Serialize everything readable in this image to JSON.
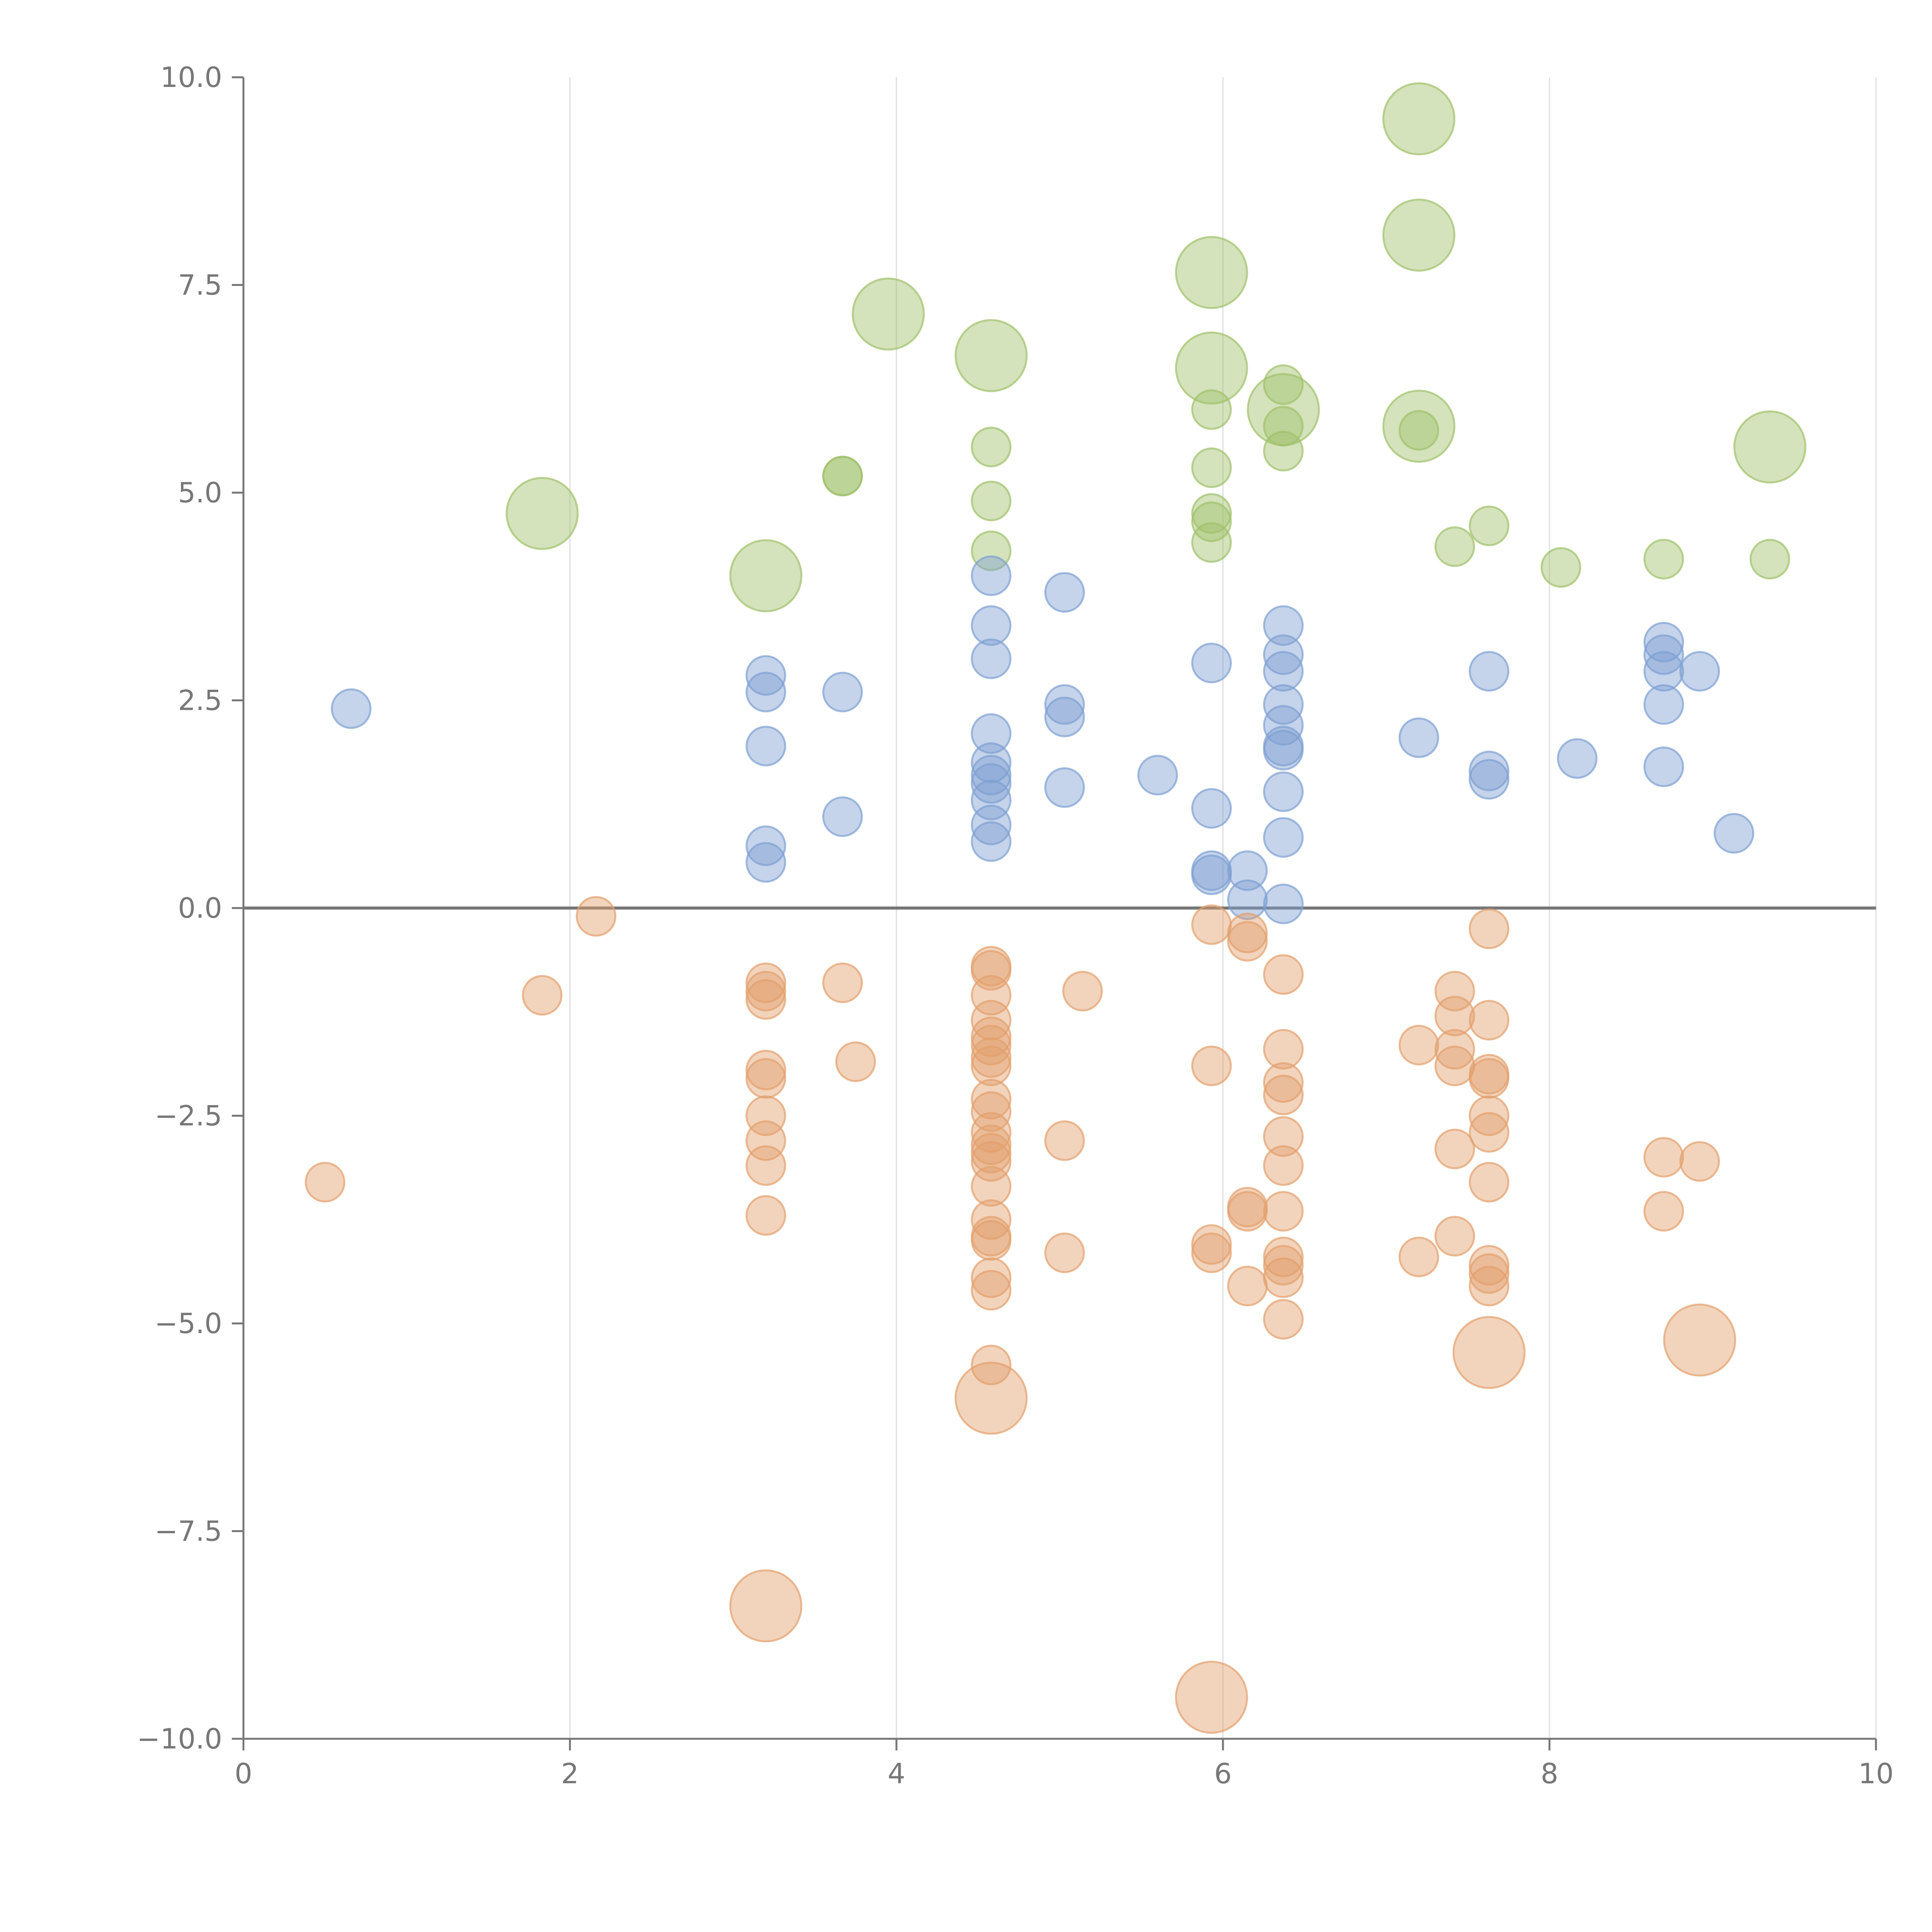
{
  "chart_data": {
    "type": "scatter",
    "title": "",
    "xlabel": "",
    "ylabel": "",
    "xlim": [
      0,
      10
    ],
    "ylim": [
      -10,
      10
    ],
    "x_ticks": [
      0,
      2,
      4,
      6,
      8,
      10
    ],
    "x_tick_labels": [
      "0",
      "2",
      "4",
      "6",
      "8",
      "10"
    ],
    "y_ticks": [
      10,
      7.5,
      5,
      2.5,
      0,
      -2.5,
      -5,
      -7.5,
      -10
    ],
    "y_tick_labels": [
      "10.0",
      "7.5",
      "5.0",
      "2.5",
      "0.0",
      "−2.5",
      "−5.0",
      "−7.5",
      "−10.0"
    ],
    "grid": {
      "vertical": true,
      "horizontal": false
    },
    "zero_line": true,
    "legend": "none",
    "series": [
      {
        "color": "#9fc06a",
        "points": [
          [
            7.2,
            9.5,
            3
          ],
          [
            7.2,
            8.1,
            3
          ],
          [
            5.93,
            7.65,
            3
          ],
          [
            3.95,
            7.15,
            3
          ],
          [
            4.58,
            6.65,
            3
          ],
          [
            5.93,
            6.5,
            3
          ],
          [
            6.37,
            6.3,
            1
          ],
          [
            6.37,
            6.0,
            3
          ],
          [
            5.93,
            6.0,
            1
          ],
          [
            6.37,
            5.8,
            1
          ],
          [
            7.2,
            5.8,
            3
          ],
          [
            7.2,
            5.75,
            1
          ],
          [
            4.58,
            5.55,
            1
          ],
          [
            9.35,
            5.55,
            3
          ],
          [
            6.37,
            5.5,
            1
          ],
          [
            5.93,
            5.3,
            1
          ],
          [
            3.67,
            5.2,
            1
          ],
          [
            3.67,
            5.2,
            1
          ],
          [
            4.58,
            4.9,
            1
          ],
          [
            1.83,
            4.75,
            3
          ],
          [
            5.93,
            4.75,
            1
          ],
          [
            5.93,
            4.65,
            1
          ],
          [
            7.63,
            4.6,
            1
          ],
          [
            5.93,
            4.4,
            1
          ],
          [
            4.58,
            4.3,
            1
          ],
          [
            7.42,
            4.35,
            1
          ],
          [
            8.7,
            4.2,
            1
          ],
          [
            9.35,
            4.2,
            1
          ],
          [
            8.07,
            4.1,
            1
          ],
          [
            3.2,
            4.0,
            3
          ]
        ]
      },
      {
        "color": "#7e9fd2",
        "points": [
          [
            4.58,
            4.0,
            1
          ],
          [
            5.03,
            3.8,
            1
          ],
          [
            4.58,
            3.4,
            1
          ],
          [
            6.37,
            3.4,
            1
          ],
          [
            8.7,
            3.2,
            1
          ],
          [
            6.37,
            3.05,
            1
          ],
          [
            8.7,
            3.05,
            1
          ],
          [
            4.58,
            3.0,
            1
          ],
          [
            5.93,
            2.95,
            1
          ],
          [
            7.63,
            2.85,
            1
          ],
          [
            6.37,
            2.85,
            1
          ],
          [
            8.7,
            2.85,
            1
          ],
          [
            8.92,
            2.85,
            1
          ],
          [
            3.2,
            2.8,
            1
          ],
          [
            3.2,
            2.6,
            1
          ],
          [
            3.67,
            2.6,
            1
          ],
          [
            8.7,
            2.45,
            1
          ],
          [
            6.37,
            2.45,
            1
          ],
          [
            5.03,
            2.45,
            1
          ],
          [
            0.66,
            2.4,
            1
          ],
          [
            5.03,
            2.3,
            1
          ],
          [
            6.37,
            2.2,
            1
          ],
          [
            4.58,
            2.1,
            1
          ],
          [
            7.2,
            2.05,
            1
          ],
          [
            3.2,
            1.95,
            1
          ],
          [
            6.37,
            1.95,
            1
          ],
          [
            6.37,
            1.9,
            1
          ],
          [
            8.17,
            1.8,
            1
          ],
          [
            4.58,
            1.75,
            1
          ],
          [
            8.7,
            1.7,
            1
          ],
          [
            7.63,
            1.65,
            1
          ],
          [
            4.58,
            1.6,
            1
          ],
          [
            5.6,
            1.6,
            1
          ],
          [
            4.58,
            1.5,
            1
          ],
          [
            7.63,
            1.55,
            1
          ],
          [
            5.03,
            1.45,
            1
          ],
          [
            6.37,
            1.4,
            1
          ],
          [
            4.58,
            1.3,
            1
          ],
          [
            5.93,
            1.2,
            1
          ],
          [
            3.67,
            1.1,
            1
          ],
          [
            4.58,
            1.0,
            1
          ],
          [
            9.13,
            0.9,
            1
          ],
          [
            6.37,
            0.85,
            1
          ],
          [
            4.58,
            0.8,
            1
          ],
          [
            3.2,
            0.75,
            1
          ],
          [
            3.2,
            0.55,
            1
          ],
          [
            6.15,
            0.45,
            1
          ],
          [
            5.93,
            0.45,
            1
          ],
          [
            5.93,
            0.4,
            1
          ],
          [
            6.15,
            0.1,
            1
          ],
          [
            6.37,
            0.05,
            1
          ]
        ]
      },
      {
        "color": "#e3a06c",
        "points": [
          [
            2.16,
            -0.1,
            1
          ],
          [
            5.93,
            -0.2,
            1
          ],
          [
            6.15,
            -0.3,
            1
          ],
          [
            7.63,
            -0.25,
            1
          ],
          [
            6.15,
            -0.4,
            1
          ],
          [
            4.58,
            -0.7,
            1
          ],
          [
            4.58,
            -0.75,
            1
          ],
          [
            6.37,
            -0.8,
            1
          ],
          [
            3.67,
            -0.9,
            1
          ],
          [
            3.2,
            -0.9,
            1
          ],
          [
            3.2,
            -1.0,
            1
          ],
          [
            5.14,
            -1.0,
            1
          ],
          [
            7.42,
            -1.0,
            1
          ],
          [
            1.83,
            -1.05,
            1
          ],
          [
            4.58,
            -1.05,
            1
          ],
          [
            3.2,
            -1.1,
            1
          ],
          [
            7.42,
            -1.3,
            1
          ],
          [
            4.58,
            -1.35,
            1
          ],
          [
            7.63,
            -1.35,
            1
          ],
          [
            4.58,
            -1.55,
            1
          ],
          [
            7.2,
            -1.65,
            1
          ],
          [
            4.58,
            -1.65,
            1
          ],
          [
            6.37,
            -1.7,
            1
          ],
          [
            7.42,
            -1.7,
            1
          ],
          [
            4.58,
            -1.8,
            1
          ],
          [
            3.75,
            -1.85,
            1
          ],
          [
            5.93,
            -1.9,
            1
          ],
          [
            4.58,
            -1.9,
            1
          ],
          [
            7.42,
            -1.9,
            1
          ],
          [
            3.2,
            -1.95,
            1
          ],
          [
            7.63,
            -2.0,
            1
          ],
          [
            3.2,
            -2.05,
            1
          ],
          [
            7.63,
            -2.05,
            1
          ],
          [
            6.37,
            -2.1,
            1
          ],
          [
            6.37,
            -2.25,
            1
          ],
          [
            4.58,
            -2.3,
            1
          ],
          [
            4.58,
            -2.45,
            1
          ],
          [
            3.2,
            -2.5,
            1
          ],
          [
            7.63,
            -2.5,
            1
          ],
          [
            4.58,
            -2.7,
            1
          ],
          [
            7.63,
            -2.7,
            1
          ],
          [
            5.03,
            -2.8,
            1
          ],
          [
            3.2,
            -2.8,
            1
          ],
          [
            6.37,
            -2.75,
            1
          ],
          [
            4.58,
            -2.85,
            1
          ],
          [
            7.42,
            -2.9,
            1
          ],
          [
            4.58,
            -2.95,
            1
          ],
          [
            8.7,
            -3.0,
            1
          ],
          [
            4.58,
            -3.05,
            1
          ],
          [
            8.92,
            -3.05,
            1
          ],
          [
            6.37,
            -3.1,
            1
          ],
          [
            3.2,
            -3.1,
            1
          ],
          [
            7.63,
            -3.3,
            1
          ],
          [
            0.5,
            -3.3,
            1
          ],
          [
            4.58,
            -3.35,
            1
          ],
          [
            6.15,
            -3.6,
            1
          ],
          [
            6.15,
            -3.65,
            1
          ],
          [
            6.37,
            -3.65,
            1
          ],
          [
            8.7,
            -3.65,
            1
          ],
          [
            3.2,
            -3.7,
            1
          ],
          [
            4.58,
            -3.75,
            1
          ],
          [
            7.42,
            -3.95,
            1
          ],
          [
            4.58,
            -3.95,
            1
          ],
          [
            4.58,
            -4.0,
            1
          ],
          [
            5.93,
            -4.05,
            1
          ],
          [
            5.93,
            -4.15,
            1
          ],
          [
            5.03,
            -4.15,
            1
          ],
          [
            7.2,
            -4.2,
            1
          ],
          [
            6.37,
            -4.2,
            1
          ],
          [
            6.37,
            -4.3,
            1
          ],
          [
            7.63,
            -4.3,
            1
          ],
          [
            7.63,
            -4.4,
            1
          ],
          [
            6.37,
            -4.45,
            1
          ],
          [
            4.58,
            -4.45,
            1
          ],
          [
            6.15,
            -4.55,
            1
          ],
          [
            7.63,
            -4.55,
            1
          ],
          [
            4.58,
            -4.6,
            1
          ],
          [
            6.37,
            -4.95,
            1
          ],
          [
            8.92,
            -5.2,
            3
          ],
          [
            7.63,
            -5.35,
            3
          ],
          [
            4.58,
            -5.5,
            1
          ],
          [
            4.58,
            -5.9,
            3
          ],
          [
            3.2,
            -8.4,
            3
          ],
          [
            5.93,
            -9.5,
            3
          ]
        ]
      }
    ]
  }
}
